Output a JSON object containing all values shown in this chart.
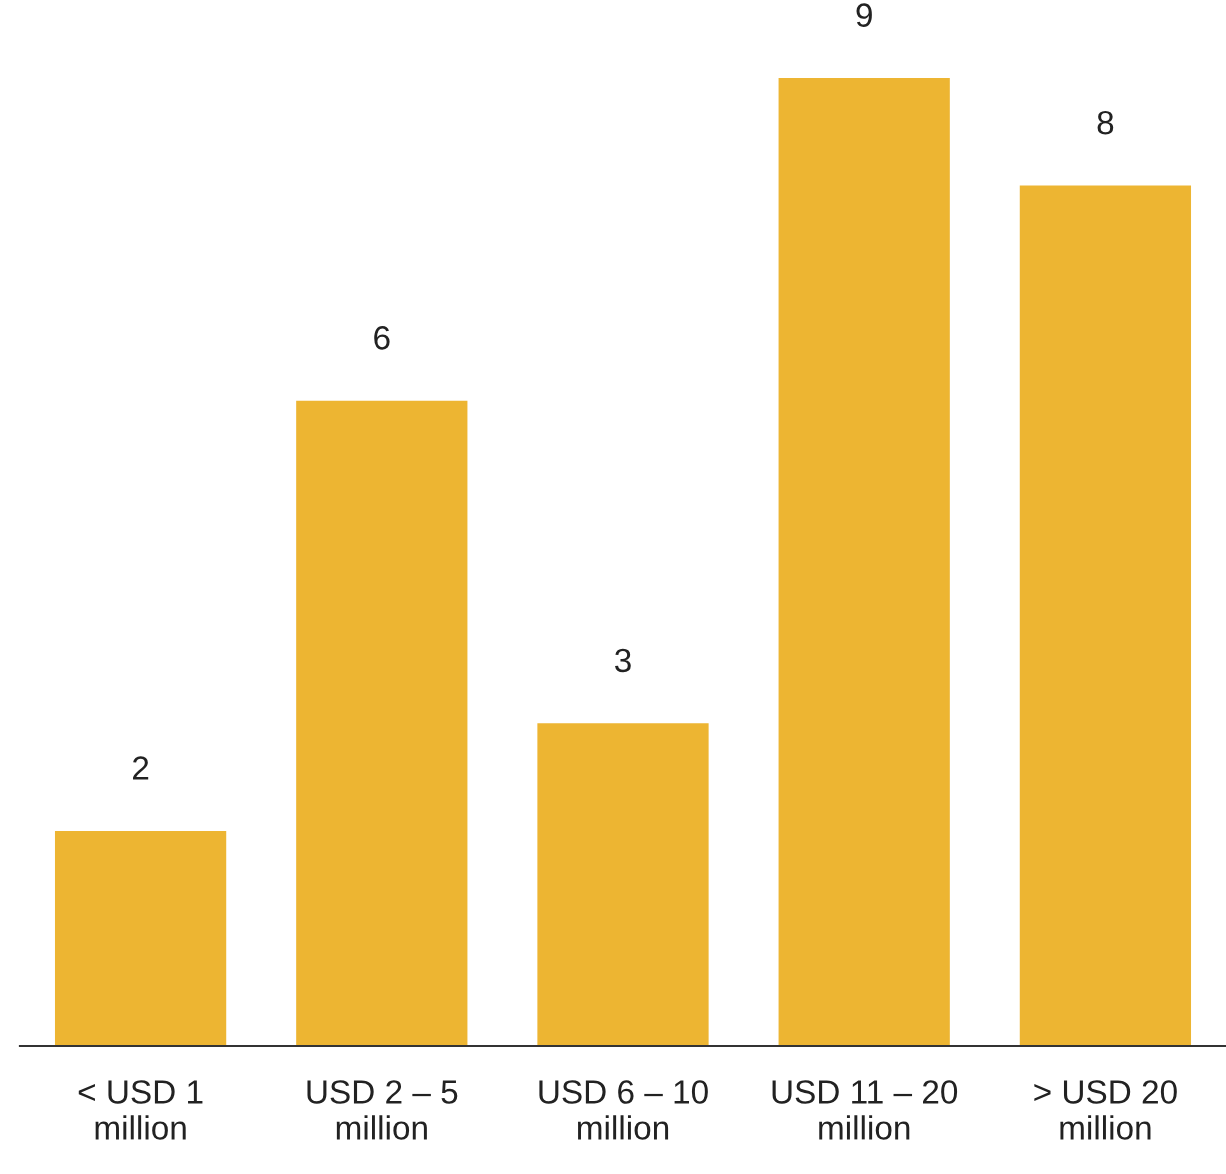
{
  "chart_data": {
    "type": "bar",
    "categories": [
      "< USD 1\nmillion",
      "USD 2 – 5\nmillion",
      "USD 6 – 10\nmillion",
      "USD 11 – 20\nmillion",
      "> USD 20\nmillion"
    ],
    "values": [
      2,
      6,
      3,
      9,
      8
    ],
    "color": "#edb532",
    "data_labels": true,
    "grid": false,
    "legend": false,
    "tick_labels": "x"
  }
}
